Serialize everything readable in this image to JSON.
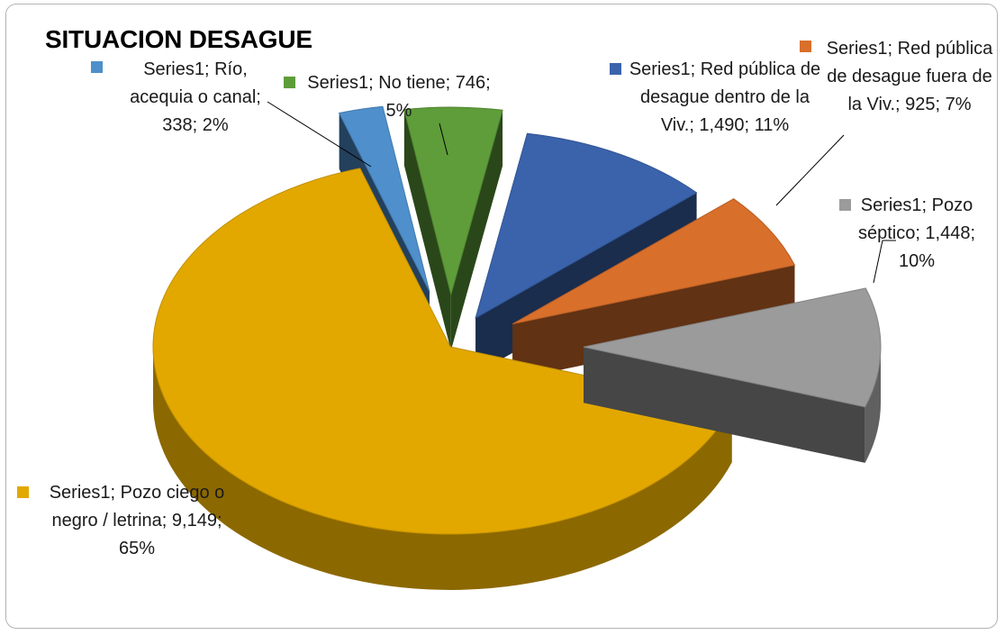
{
  "chart_data": {
    "type": "pie",
    "style": "3d-exploded",
    "title": "SITUACION DESAGUE",
    "series_name": "Series1",
    "slices": [
      {
        "category": "Red pública de desague dentro de la Viv.",
        "value": 1490,
        "percent": 11,
        "color": "#3a63ac",
        "label": "Series1;  Red pública de desague dentro de la Viv.; 1,490; 11%"
      },
      {
        "category": "Red pública de desague fuera de la Viv.",
        "value": 925,
        "percent": 7,
        "color": "#d86f2b",
        "label": "Series1;  Red pública de desague fuera de la Viv.; 925; 7%"
      },
      {
        "category": "Pozo séptico",
        "value": 1448,
        "percent": 10,
        "color": "#9b9b9b",
        "label": "Series1;  Pozo séptico; 1,448; 10%"
      },
      {
        "category": "Pozo ciego o negro / letrina",
        "value": 9149,
        "percent": 65,
        "color": "#e2a800",
        "label": "Series1;  Pozo ciego o negro / letrina; 9,149; 65%"
      },
      {
        "category": "Río, acequia o canal",
        "value": 338,
        "percent": 2,
        "color": "#4e8fcc",
        "label": "Series1;  Río, acequia o canal; 338; 2%"
      },
      {
        "category": "No tiene",
        "value": 746,
        "percent": 5,
        "color": "#5e9d3a",
        "label": "Series1;  No tiene; 746; 5%"
      }
    ]
  }
}
